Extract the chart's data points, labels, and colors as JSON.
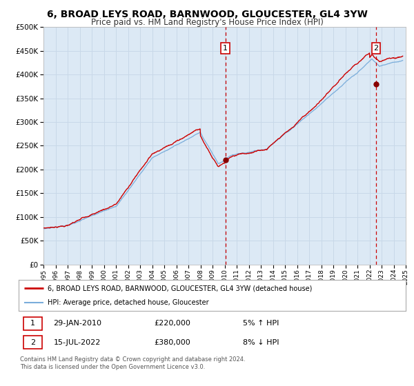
{
  "title": "6, BROAD LEYS ROAD, BARNWOOD, GLOUCESTER, GL4 3YW",
  "subtitle": "Price paid vs. HM Land Registry's House Price Index (HPI)",
  "title_fontsize": 10,
  "subtitle_fontsize": 8.5,
  "background_color": "#ffffff",
  "plot_bg_color": "#dce9f5",
  "grid_color": "#c8d8e8",
  "red_line_color": "#cc0000",
  "blue_line_color": "#7aaddb",
  "ylim": [
    0,
    500000
  ],
  "yticks": [
    0,
    50000,
    100000,
    150000,
    200000,
    250000,
    300000,
    350000,
    400000,
    450000,
    500000
  ],
  "annotation1": {
    "x_year": 2010.07,
    "y_val": 220000,
    "label": "1",
    "date": "29-JAN-2010",
    "price": "£220,000",
    "hpi_change": "5% ↑ HPI"
  },
  "annotation2": {
    "x_year": 2022.54,
    "y_val": 380000,
    "label": "2",
    "date": "15-JUL-2022",
    "price": "£380,000",
    "hpi_change": "8% ↓ HPI"
  },
  "legend_line1": "6, BROAD LEYS ROAD, BARNWOOD, GLOUCESTER, GL4 3YW (detached house)",
  "legend_line2": "HPI: Average price, detached house, Gloucester",
  "footer1": "Contains HM Land Registry data © Crown copyright and database right 2024.",
  "footer2": "This data is licensed under the Open Government Licence v3.0.",
  "xmin": 1995,
  "xmax": 2025
}
